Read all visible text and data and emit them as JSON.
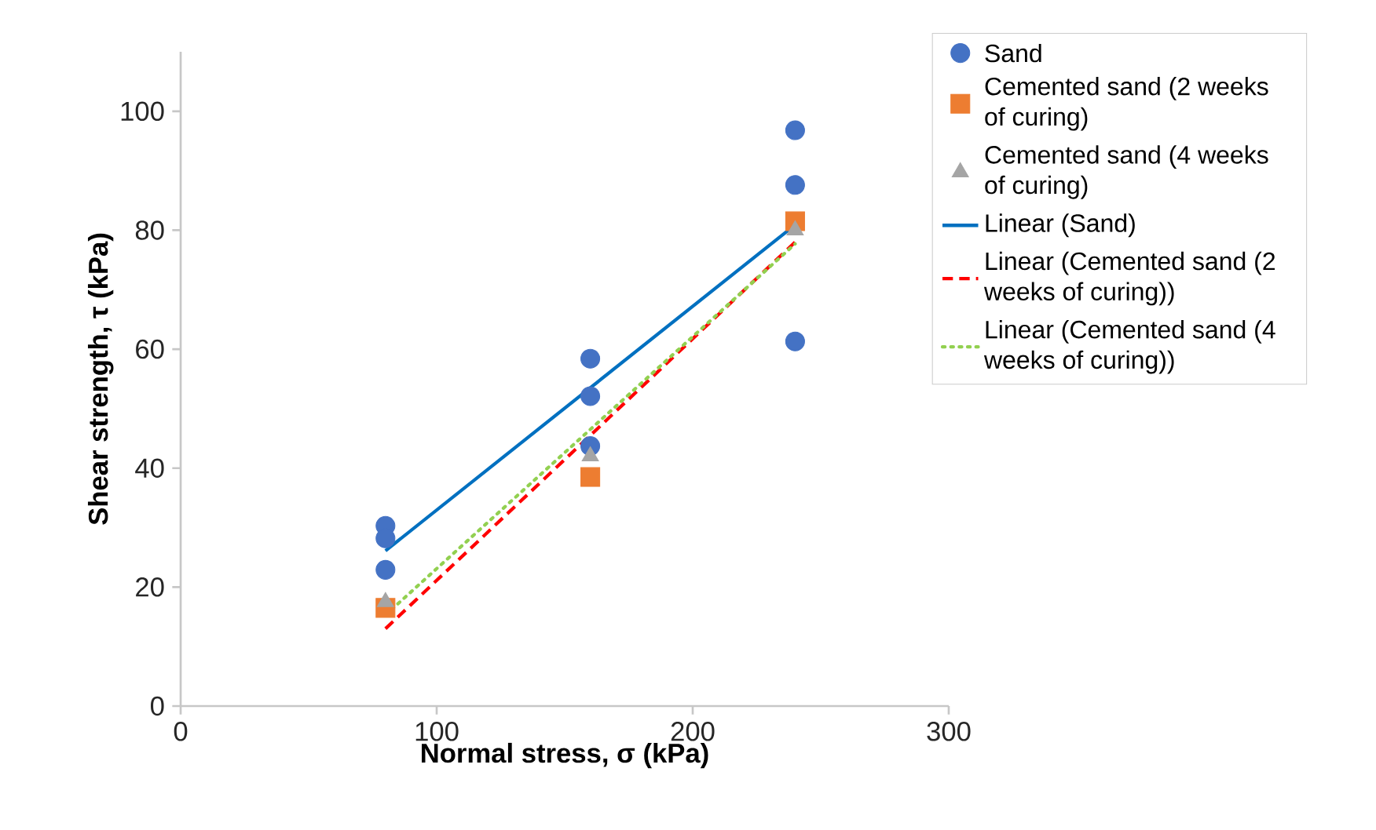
{
  "chart_data": {
    "type": "scatter",
    "xlabel": "Normal stress, σ (kPa)",
    "ylabel": "Shear strength, τ (kPa)",
    "xlim": [
      0,
      300
    ],
    "xticks": [
      0,
      100,
      200,
      300
    ],
    "ylim": [
      0,
      110
    ],
    "yticks": [
      0,
      20,
      40,
      60,
      80,
      100
    ],
    "grid": false,
    "legend": "right",
    "series": [
      {
        "name": "Sand",
        "marker": "circle",
        "color": "#4472c4",
        "x": [
          80,
          80,
          80,
          160,
          160,
          160,
          240,
          240,
          240
        ],
        "values": [
          30.3,
          28.2,
          22.9,
          58.4,
          52.1,
          43.7,
          96.8,
          87.6,
          61.3
        ]
      },
      {
        "name": "Cemented sand (2 weeks of curing)",
        "marker": "square",
        "color": "#ed7d31",
        "x": [
          80,
          160,
          240
        ],
        "values": [
          16.5,
          38.5,
          81.5
        ]
      },
      {
        "name": "Cemented sand (4 weeks of curing)",
        "marker": "triangle",
        "color": "#a5a5a5",
        "x": [
          80,
          160,
          240
        ],
        "values": [
          17.5,
          42,
          80
        ]
      },
      {
        "name": "Linear (Sand)",
        "type": "line",
        "line_style": "solid",
        "color": "#0070c0",
        "x": [
          80,
          240
        ],
        "values": [
          26.1,
          80.9
        ]
      },
      {
        "name": "Linear (Cemented sand (2 weeks of curing))",
        "type": "line",
        "line_style": "dashed",
        "color": "#ff0000",
        "x": [
          80,
          240
        ],
        "values": [
          13.0,
          78.0
        ]
      },
      {
        "name": "Linear (Cemented sand (4 weeks of curing))",
        "type": "line",
        "line_style": "dotted",
        "color": "#92d050",
        "x": [
          80,
          240
        ],
        "values": [
          15.3,
          77.7
        ]
      }
    ]
  }
}
